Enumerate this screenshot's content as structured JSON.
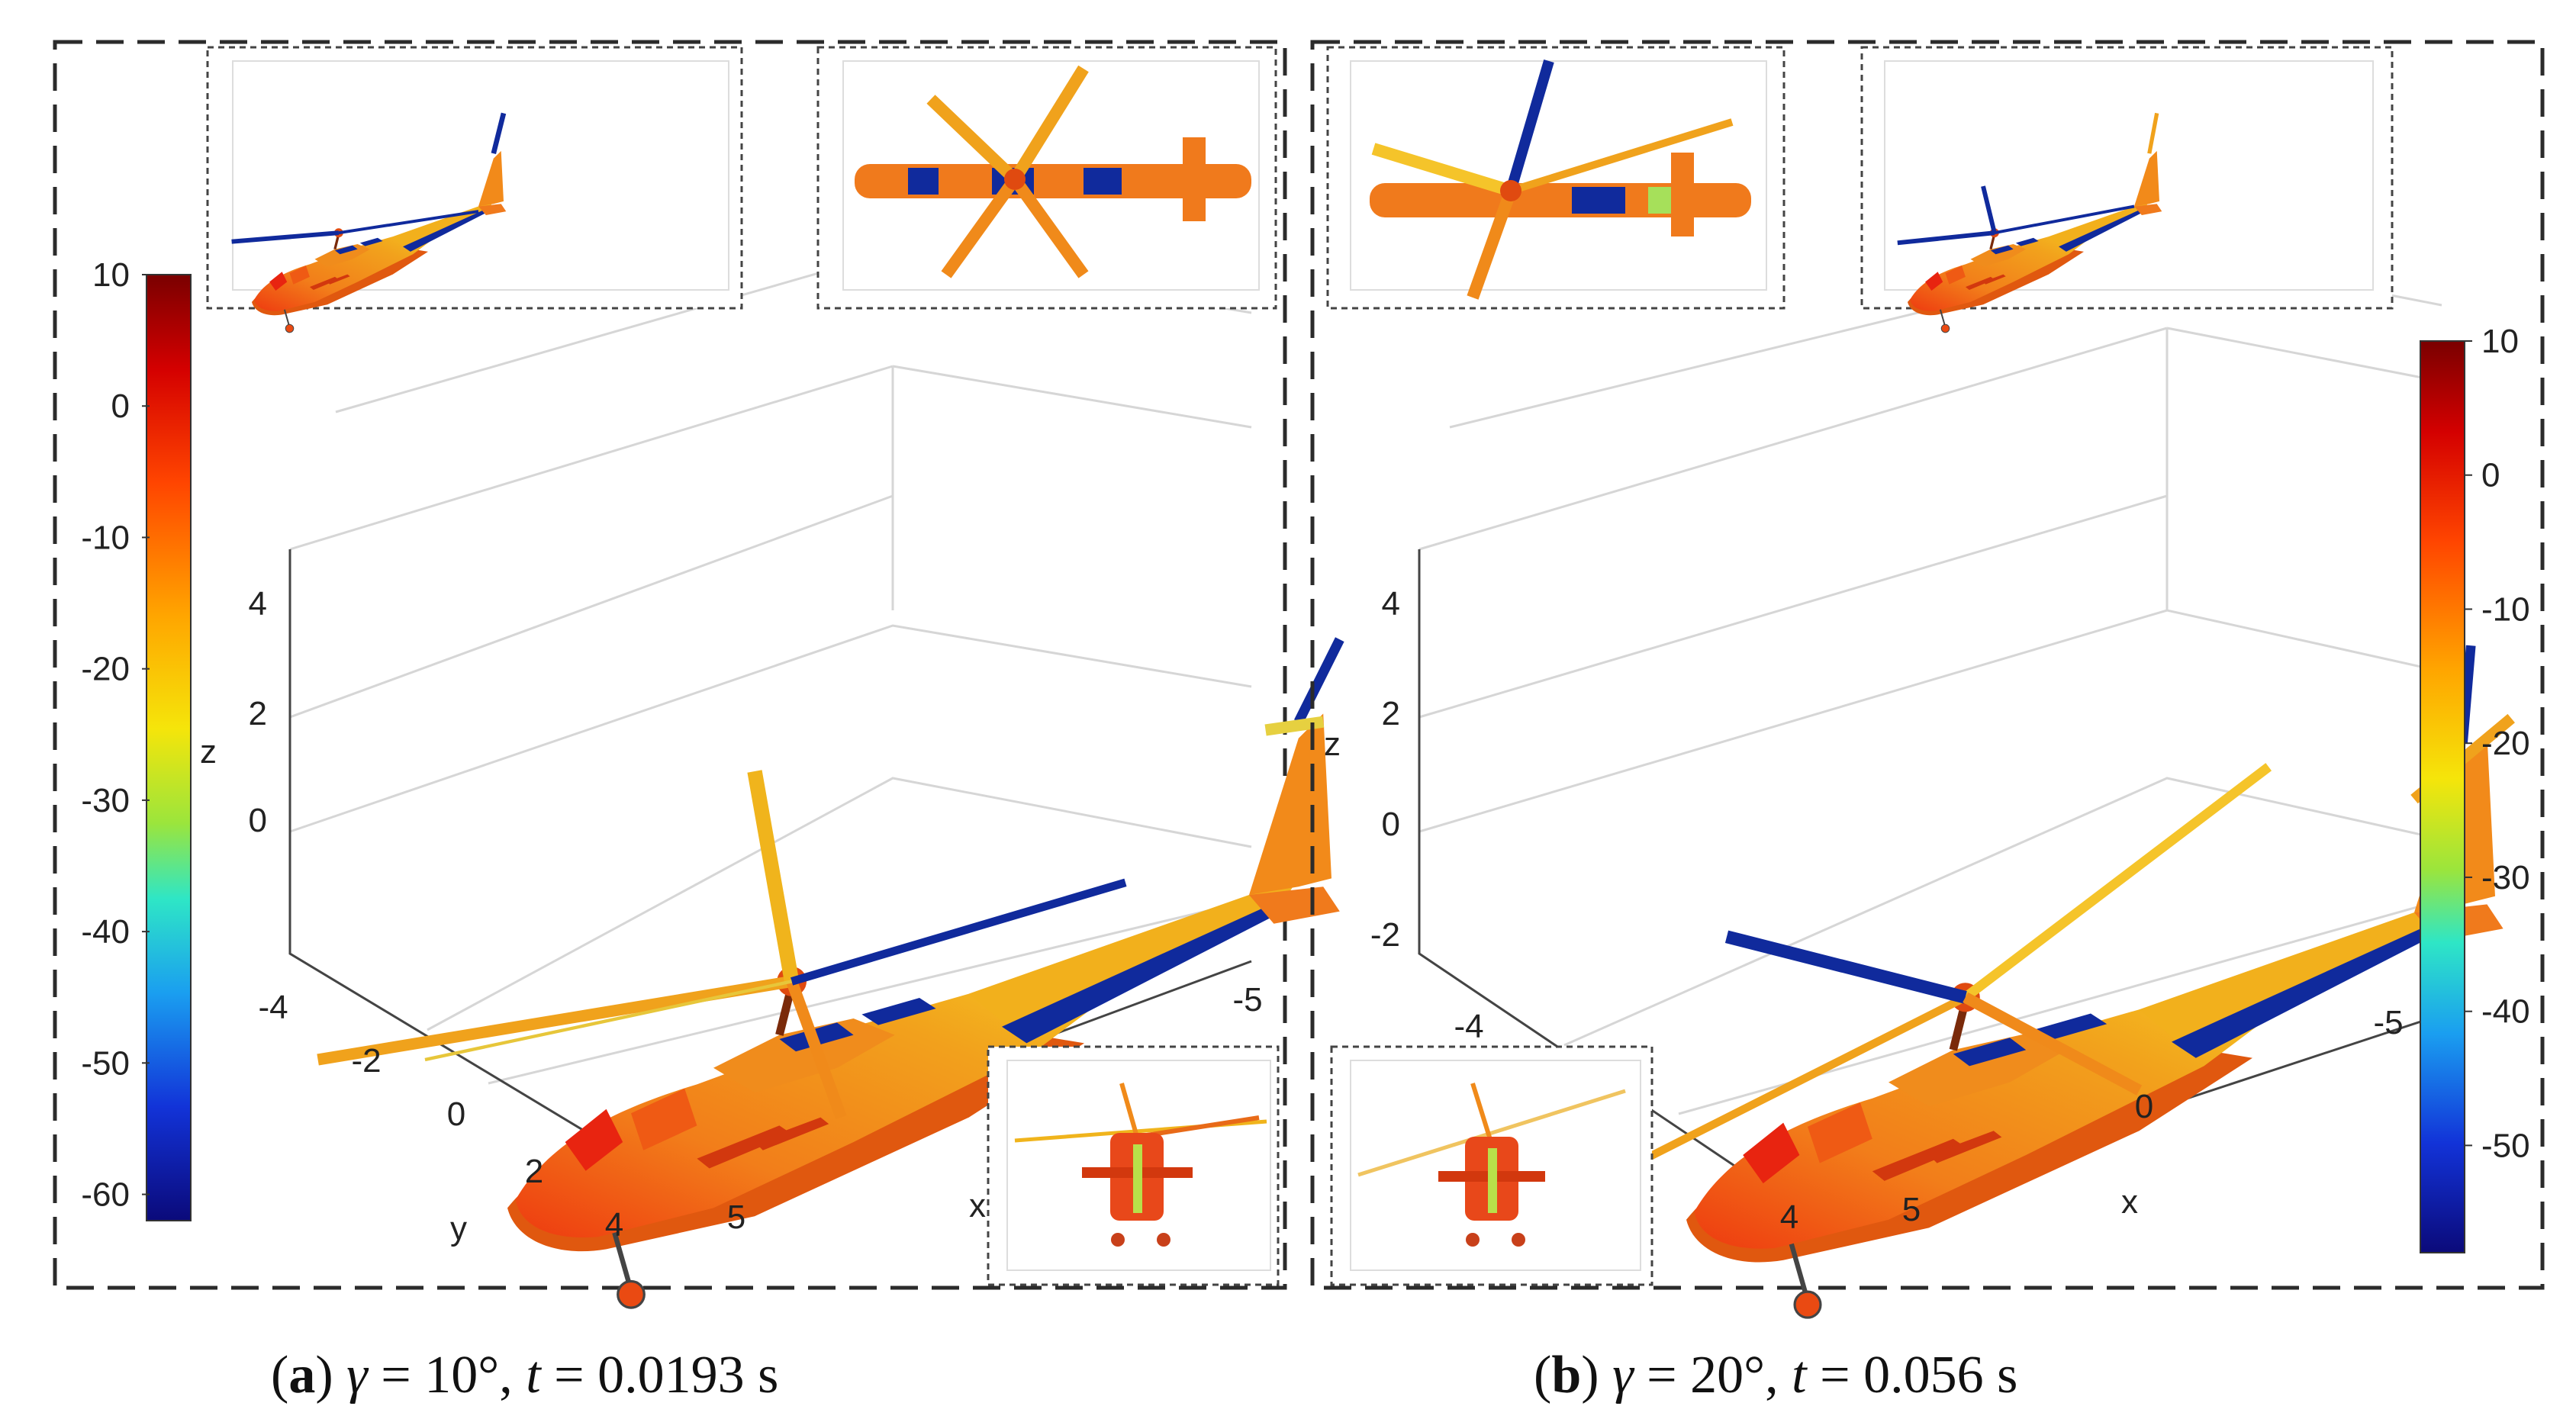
{
  "colors": {
    "panel_border": "#2b2b2b",
    "grid": "#d6d6d6",
    "fuselage_orange": "#f07a1c",
    "fuselage_dark": "#e0580f",
    "fuselage_yellow": "#f5b51c",
    "red_patch": "#e82410",
    "blue_patch": "#102a9c",
    "cyan_patch": "#7fd06a"
  },
  "panels": [
    {
      "id": "a",
      "colorbar": {
        "ticks": [
          "10",
          "0",
          "-10",
          "-20",
          "-30",
          "-40",
          "-50",
          "-60"
        ],
        "tick_values": [
          10,
          0,
          -10,
          -20,
          -30,
          -40,
          -50,
          -60
        ],
        "range": [
          -62,
          10
        ]
      },
      "axes": {
        "z_label": "z",
        "z_ticks": [
          "4",
          "2",
          "0"
        ],
        "y_label": "y",
        "y_ticks": [
          "-4",
          "-2",
          "0",
          "2",
          "4"
        ],
        "x_label": "x",
        "x_ticks": [
          "5",
          "-5"
        ]
      },
      "insets": [
        "side-view-inset",
        "top-view-inset",
        "front-view-inset"
      ],
      "caption": {
        "letter": "a",
        "gamma_symbol": "γ",
        "gamma_value": " = 10°, ",
        "t_symbol": "t",
        "t_value": " = 0.0193 s"
      }
    },
    {
      "id": "b",
      "colorbar": {
        "ticks": [
          "10",
          "0",
          "-10",
          "-20",
          "-30",
          "-40",
          "-50"
        ],
        "tick_values": [
          10,
          0,
          -10,
          -20,
          -30,
          -40,
          -50
        ],
        "range": [
          -58,
          10
        ]
      },
      "axes": {
        "z_label": "z",
        "z_ticks": [
          "4",
          "2",
          "0",
          "-2"
        ],
        "y_ticks": [
          "-4",
          "4"
        ],
        "x_label": "x",
        "x_ticks": [
          "5",
          "0",
          "-5"
        ]
      },
      "insets": [
        "top-view-inset",
        "side-view-inset",
        "front-view-inset"
      ],
      "caption": {
        "letter": "b",
        "gamma_symbol": "γ",
        "gamma_value": " = 20°, ",
        "t_symbol": "t",
        "t_value": " = 0.056 s"
      }
    }
  ]
}
